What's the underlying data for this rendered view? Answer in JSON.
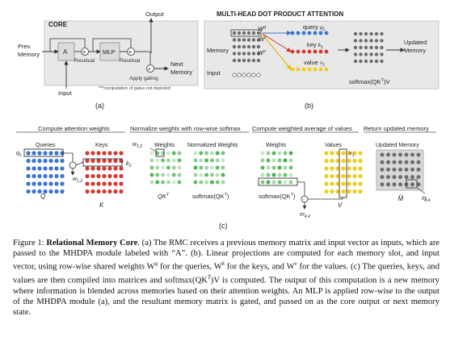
{
  "panel_a": {
    "title": "CORE",
    "output": "Output",
    "prev_memory": "Prev.\nMemory",
    "module_a": "A",
    "residual_1": "Residual",
    "mlp": "MLP",
    "residual_2": "Residual",
    "next_memory": "Next\nMemory",
    "apply_gating": "Apply gating",
    "input": "Input",
    "note": "***computation of gates not depicted",
    "label": "(a)"
  },
  "panel_b": {
    "title": "MULTI-HEAD DOT PRODUCT ATTENTION",
    "memory": "Memory",
    "input": "Input",
    "query": "query",
    "query_sym": "q",
    "query_sub": "1",
    "key": "key",
    "key_sym": "k",
    "key_sub": "1",
    "value": "value",
    "value_sym": "v",
    "value_sub": "1",
    "wq": "W",
    "wq_sup": "q",
    "wk": "W",
    "wk_sup": "k",
    "wv": "W",
    "wv_sup": "v",
    "softmax": "softmax(QK",
    "softmax_sup": "T",
    "softmax_end": ")V",
    "updated_memory": "Updated\nMemory",
    "label": "(b)"
  },
  "panel_c": {
    "step1": "Compute attention weights",
    "step2": "Normalize weights with row-wise softmax",
    "step3": "Compute weighted average of values",
    "step4": "Return updated memory",
    "queries": "Queries",
    "keys": "Keys",
    "q1": "q",
    "q1_sub": "1",
    "k2": "k",
    "k2_sub": "2",
    "w12": "w",
    "w12_sub": "1,2",
    "q_label": "Q",
    "k_label": "K",
    "weights": "Weights",
    "normalized_weights": "Normalized Weights",
    "w12b": "w",
    "w12b_sub": "1,2",
    "qkt": "QK",
    "qkt_sup": "T",
    "softmax_qkt": "softmax(QK",
    "softmax_qkt_sup": "T",
    "softmax_qkt_end": ")",
    "weights_3": "Weights",
    "values": "Values",
    "v1": "v",
    "v1_sub": "1",
    "softmax_qkt_3": "softmax(QK",
    "softmax_qkt_3_sup": "T",
    "softmax_qkt_3_end": ")",
    "m44_a": "m",
    "m44_a_sub": "4,4",
    "v_label": "V",
    "updated_memory": "Updated Memory",
    "m44_b": "m",
    "m44_b_sub": "4,4",
    "m_tilde": "M",
    "label": "(c)"
  },
  "caption": {
    "prefix": "Figure 1: ",
    "title": "Relational Memory Core",
    "body": ". (a) The RMC receives a previous memory matrix and input vector as inputs, which are passed to the MHDPA module labeled with “A”. (b). Linear projections are computed for each memory slot, and input vector, using row-wise shared weights W",
    "wq_sup": "q",
    "body2": " for the queries, W",
    "wk_sup": "k",
    "body3": " for the keys, and W",
    "wv_sup": "v",
    "body4": " for the values. (c) The queries, keys, and values are then compiled into matrices and softmax(QK",
    "t_sup": "T",
    "body5": ")V is computed. The output of this computation is a new memory where information is blended across memories based on their attention weights. An MLP is applied row-wise to the output of the MHDPA module (a), and the resultant memory matrix is gated, and passed on as the core output or next memory state."
  },
  "colors": {
    "query": "#3b73d1",
    "key": "#d33a2f",
    "value": "#f2cc1d",
    "weight": "#4caf50",
    "memory": "#6d6d6d",
    "panel_bg": "#e8e8e8"
  }
}
